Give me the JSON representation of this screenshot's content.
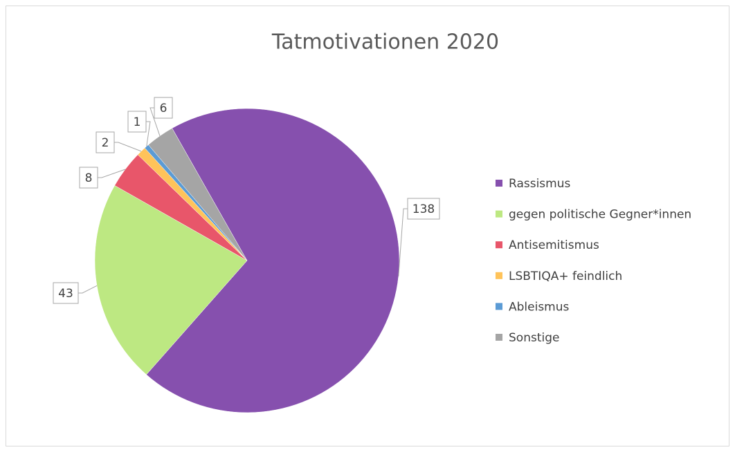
{
  "chart_data": {
    "type": "pie",
    "title": "Tatmotivationen 2020",
    "categories": [
      "Rassismus",
      "gegen politische Gegner*innen",
      "Antisemitismus",
      "LSBTIQA+ feindlich",
      "Ableismus",
      "Sonstige"
    ],
    "values": [
      138,
      43,
      8,
      2,
      1,
      6
    ],
    "colors": [
      "#8650ae",
      "#bde882",
      "#e8566a",
      "#ffc35a",
      "#5b9bd5",
      "#a5a5a5"
    ],
    "legend": "right"
  }
}
